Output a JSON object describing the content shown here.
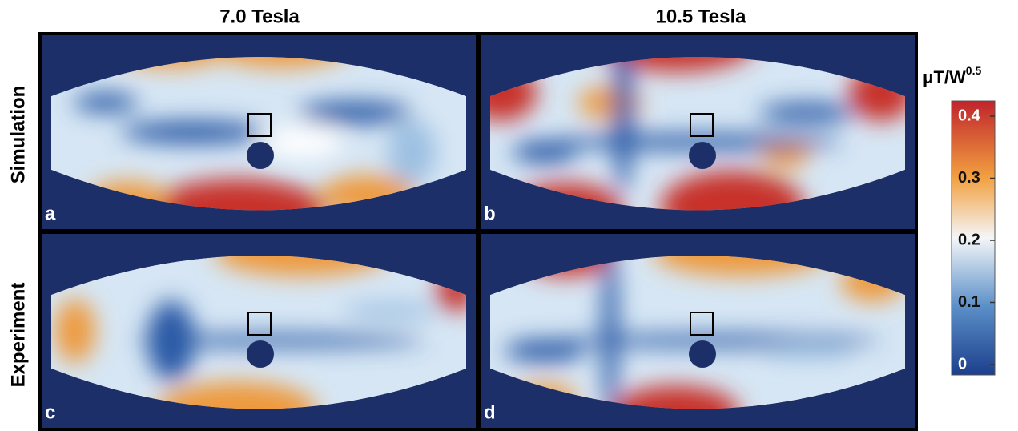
{
  "columns": [
    "7.0 Tesla",
    "10.5 Tesla"
  ],
  "rows": [
    "Simulation",
    "Experiment"
  ],
  "panels": [
    {
      "label": "a"
    },
    {
      "label": "b"
    },
    {
      "label": "c"
    },
    {
      "label": "d"
    }
  ],
  "colorbar": {
    "unit": "μT/W",
    "exponent": "0.5",
    "ticks": [
      0,
      0.1,
      0.2,
      0.3,
      0.4
    ]
  }
}
